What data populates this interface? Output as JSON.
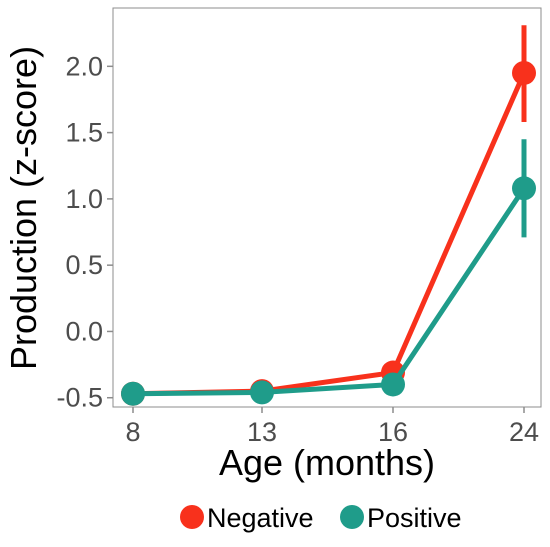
{
  "chart_data": {
    "type": "line",
    "xlabel": "Age (months)",
    "ylabel": "Production (z-score)",
    "categories": [
      "8",
      "13",
      "16",
      "24"
    ],
    "yticks": [
      -0.5,
      0.0,
      0.5,
      1.0,
      1.5,
      2.0
    ],
    "ytick_labels": [
      "-0.5",
      "0.0",
      "0.5",
      "1.0",
      "1.5",
      "2.0"
    ],
    "ylim": [
      -0.57,
      2.44
    ],
    "grid": false,
    "legend_position": "bottom",
    "series": [
      {
        "name": "Negative",
        "color": "#f8311c",
        "values": [
          -0.47,
          -0.45,
          -0.31,
          1.95
        ],
        "error_low": [
          null,
          null,
          null,
          1.58
        ],
        "error_high": [
          null,
          null,
          null,
          2.31
        ]
      },
      {
        "name": "Positive",
        "color": "#1f9c8a",
        "values": [
          -0.47,
          -0.46,
          -0.4,
          1.08
        ],
        "error_low": [
          null,
          null,
          null,
          0.71
        ],
        "error_high": [
          null,
          null,
          null,
          1.45
        ]
      }
    ]
  }
}
